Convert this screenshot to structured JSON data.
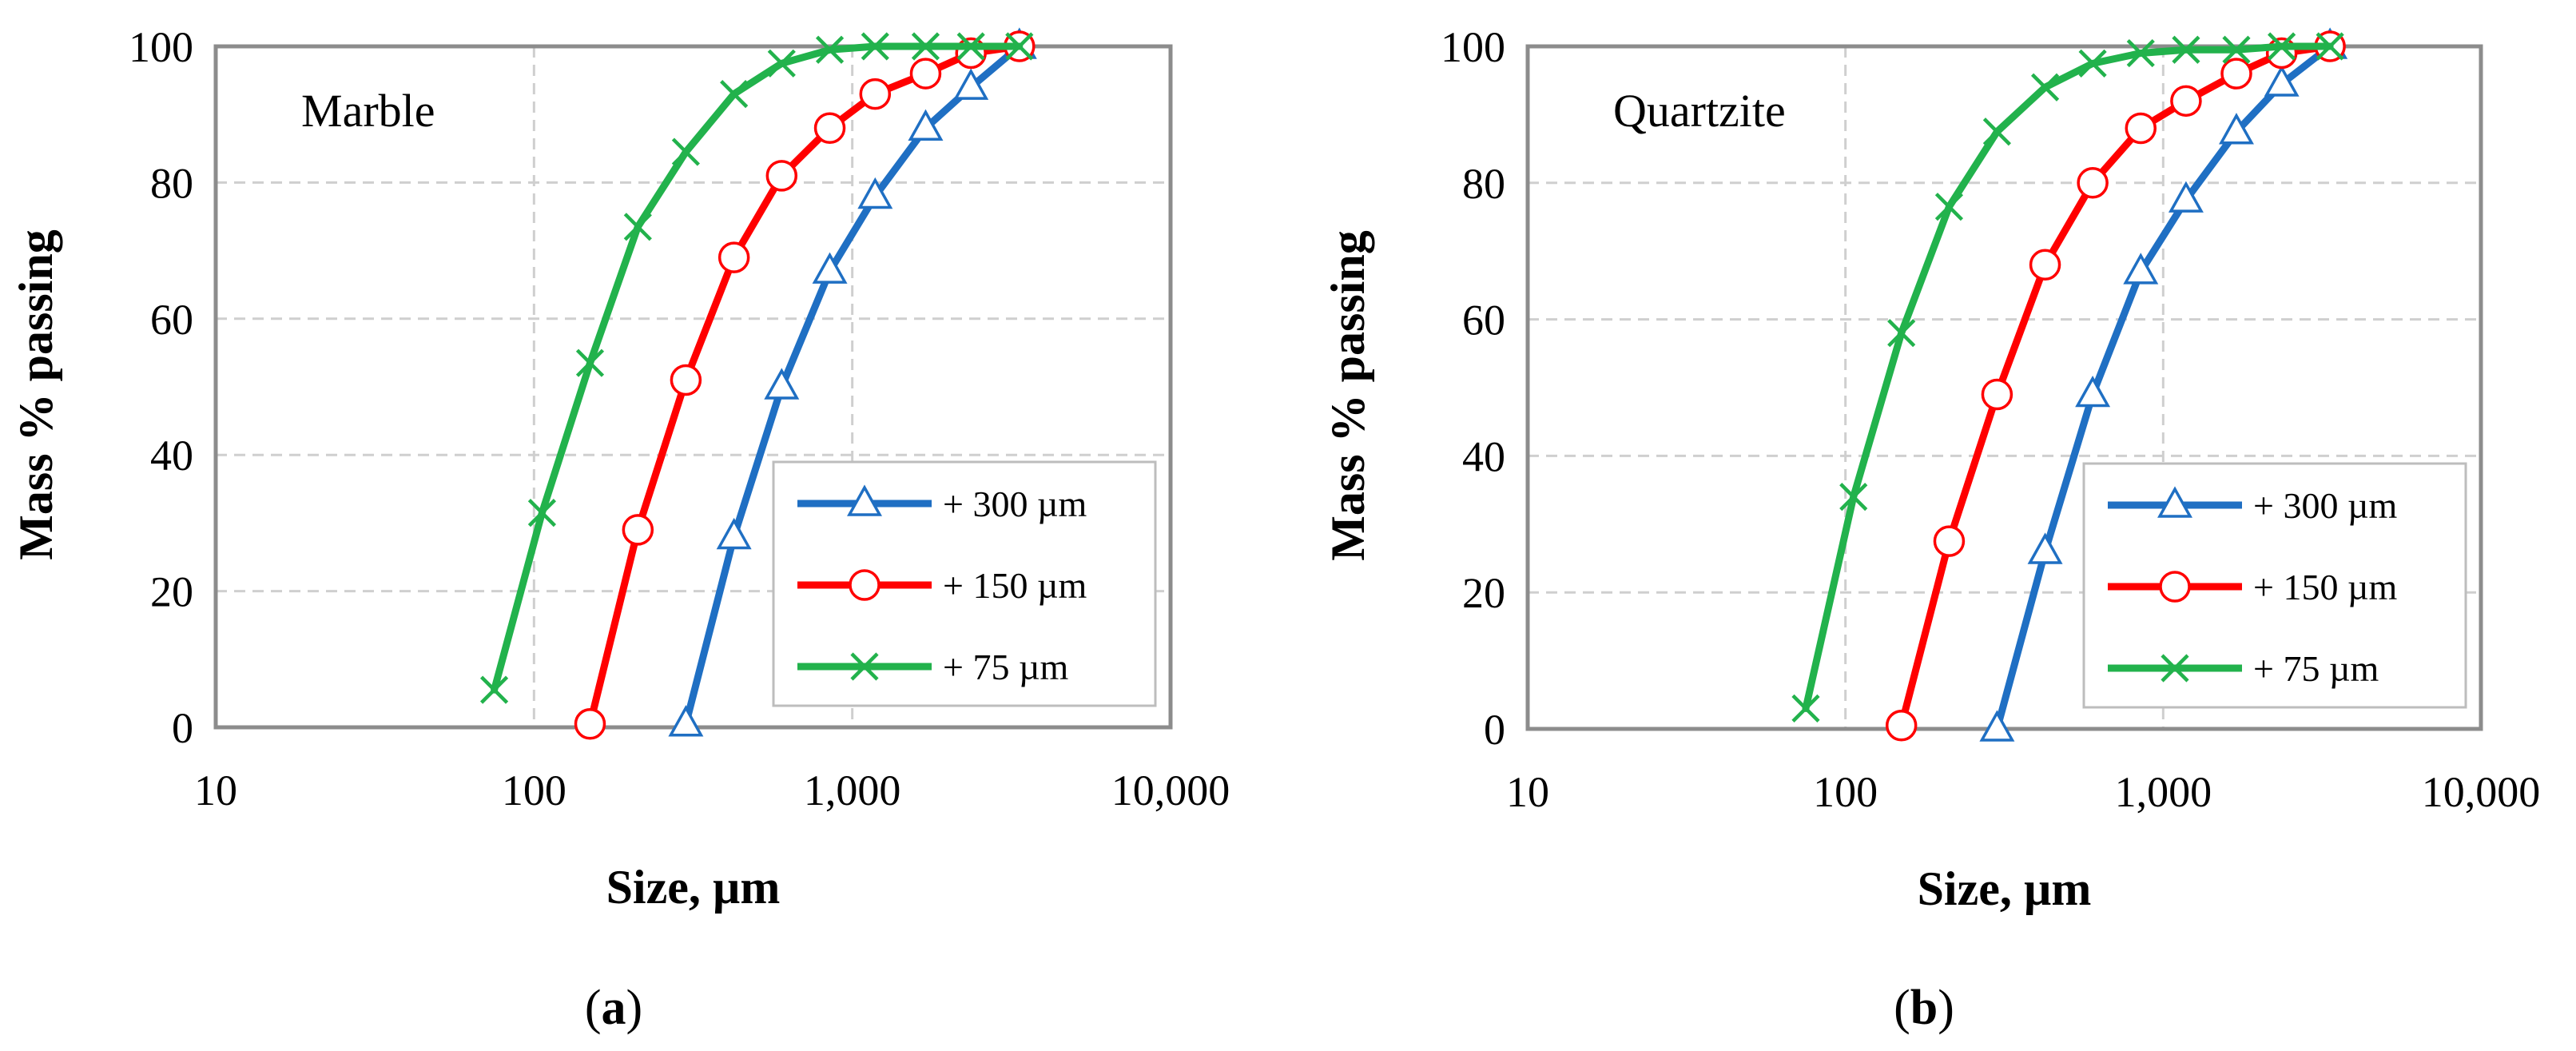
{
  "figure": {
    "captions": [
      {
        "open": "(",
        "letter": "a",
        "close": ")"
      },
      {
        "open": "(",
        "letter": "b",
        "close": ")"
      }
    ]
  },
  "series_styles": [
    {
      "name": "+ 300 µm",
      "color": "#1f6fc3",
      "marker": "triangle"
    },
    {
      "name": "+ 150 µm",
      "color": "#ff0000",
      "marker": "circle"
    },
    {
      "name": "+ 75 µm",
      "color": "#22b24c",
      "marker": "cross"
    }
  ],
  "chart_data": [
    {
      "type": "line",
      "title": "Marble",
      "xlabel": "Size, µm",
      "ylabel": "Mass % passing",
      "xscale": "log",
      "xlim": [
        10,
        10000
      ],
      "ylim": [
        0,
        100
      ],
      "xticks": [
        10,
        100,
        1000,
        10000
      ],
      "xtick_labels": [
        "10",
        "100",
        "1,000",
        "10,000"
      ],
      "yticks": [
        0,
        20,
        40,
        60,
        80,
        100
      ],
      "ytick_labels": [
        "0",
        "20",
        "40",
        "60",
        "80",
        "100"
      ],
      "grid": true,
      "legend_position": "bottom-right",
      "series": [
        {
          "name": "+ 300 µm",
          "x": [
            300,
            425,
            600,
            850,
            1180,
            1700,
            2360,
            3350
          ],
          "y": [
            0.5,
            28,
            50,
            67,
            78,
            88,
            94,
            100
          ]
        },
        {
          "name": "+ 150 µm",
          "x": [
            150,
            212,
            300,
            425,
            600,
            850,
            1180,
            1700,
            2360,
            3350
          ],
          "y": [
            0.5,
            29,
            51,
            69,
            81,
            88,
            93,
            96,
            99,
            100
          ]
        },
        {
          "name": "+ 75 µm",
          "x": [
            75,
            106,
            150,
            212,
            300,
            425,
            600,
            850,
            1180,
            1700,
            2360,
            3350
          ],
          "y": [
            5.5,
            31.5,
            53.5,
            73.5,
            84.5,
            93,
            97.5,
            99.5,
            100,
            100,
            100,
            100
          ]
        }
      ]
    },
    {
      "type": "line",
      "title": "Quartzite",
      "xlabel": "Size, µm",
      "ylabel": "Mass % passing",
      "xscale": "log",
      "xlim": [
        10,
        10000
      ],
      "ylim": [
        0,
        100
      ],
      "xticks": [
        10,
        100,
        1000,
        10000
      ],
      "xtick_labels": [
        "10",
        "100",
        "1,000",
        "10,000"
      ],
      "yticks": [
        0,
        20,
        40,
        60,
        80,
        100
      ],
      "ytick_labels": [
        "0",
        "20",
        "40",
        "60",
        "80",
        "100"
      ],
      "grid": true,
      "legend_position": "bottom-right",
      "series": [
        {
          "name": "+ 300 µm",
          "x": [
            300,
            425,
            600,
            850,
            1180,
            1700,
            2360,
            3350
          ],
          "y": [
            0,
            26,
            49,
            67,
            77.5,
            87.5,
            94.5,
            100
          ]
        },
        {
          "name": "+ 150 µm",
          "x": [
            150,
            212,
            300,
            425,
            600,
            850,
            1180,
            1700,
            2360,
            3350
          ],
          "y": [
            0.5,
            27.5,
            49,
            68,
            80,
            88,
            92,
            96,
            99,
            100
          ]
        },
        {
          "name": "+ 75 µm",
          "x": [
            75,
            106,
            150,
            212,
            300,
            425,
            600,
            850,
            1180,
            1700,
            2360,
            3350
          ],
          "y": [
            3,
            34,
            58,
            76.5,
            87.5,
            94,
            97.5,
            99,
            99.5,
            99.5,
            100,
            100
          ]
        }
      ]
    }
  ]
}
